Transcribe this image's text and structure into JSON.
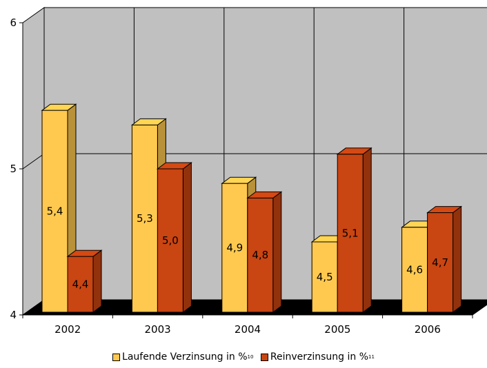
{
  "chart_data": {
    "type": "bar",
    "categories": [
      "2002",
      "2003",
      "2004",
      "2005",
      "2006"
    ],
    "series": [
      {
        "name": "Laufende Verzinsung in %",
        "footnote": "10",
        "color": "#ffc94f",
        "values": [
          5.4,
          5.3,
          4.9,
          4.5,
          4.6
        ],
        "labels": [
          "5,4",
          "5,3",
          "4,9",
          "4,5",
          "4,6"
        ]
      },
      {
        "name": "Reinverzinsung in %",
        "footnote": "11",
        "color": "#c94512",
        "values": [
          4.4,
          5.0,
          4.8,
          5.1,
          4.7
        ],
        "labels": [
          "4,4",
          "5,0",
          "4,8",
          "5,1",
          "4,7"
        ]
      }
    ],
    "yticks": [
      "4",
      "5",
      "6"
    ],
    "ylim": [
      4,
      6
    ],
    "grid": true,
    "legend_position": "bottom",
    "wall_color": "#c0c0c0",
    "floor_color": "#000000"
  }
}
